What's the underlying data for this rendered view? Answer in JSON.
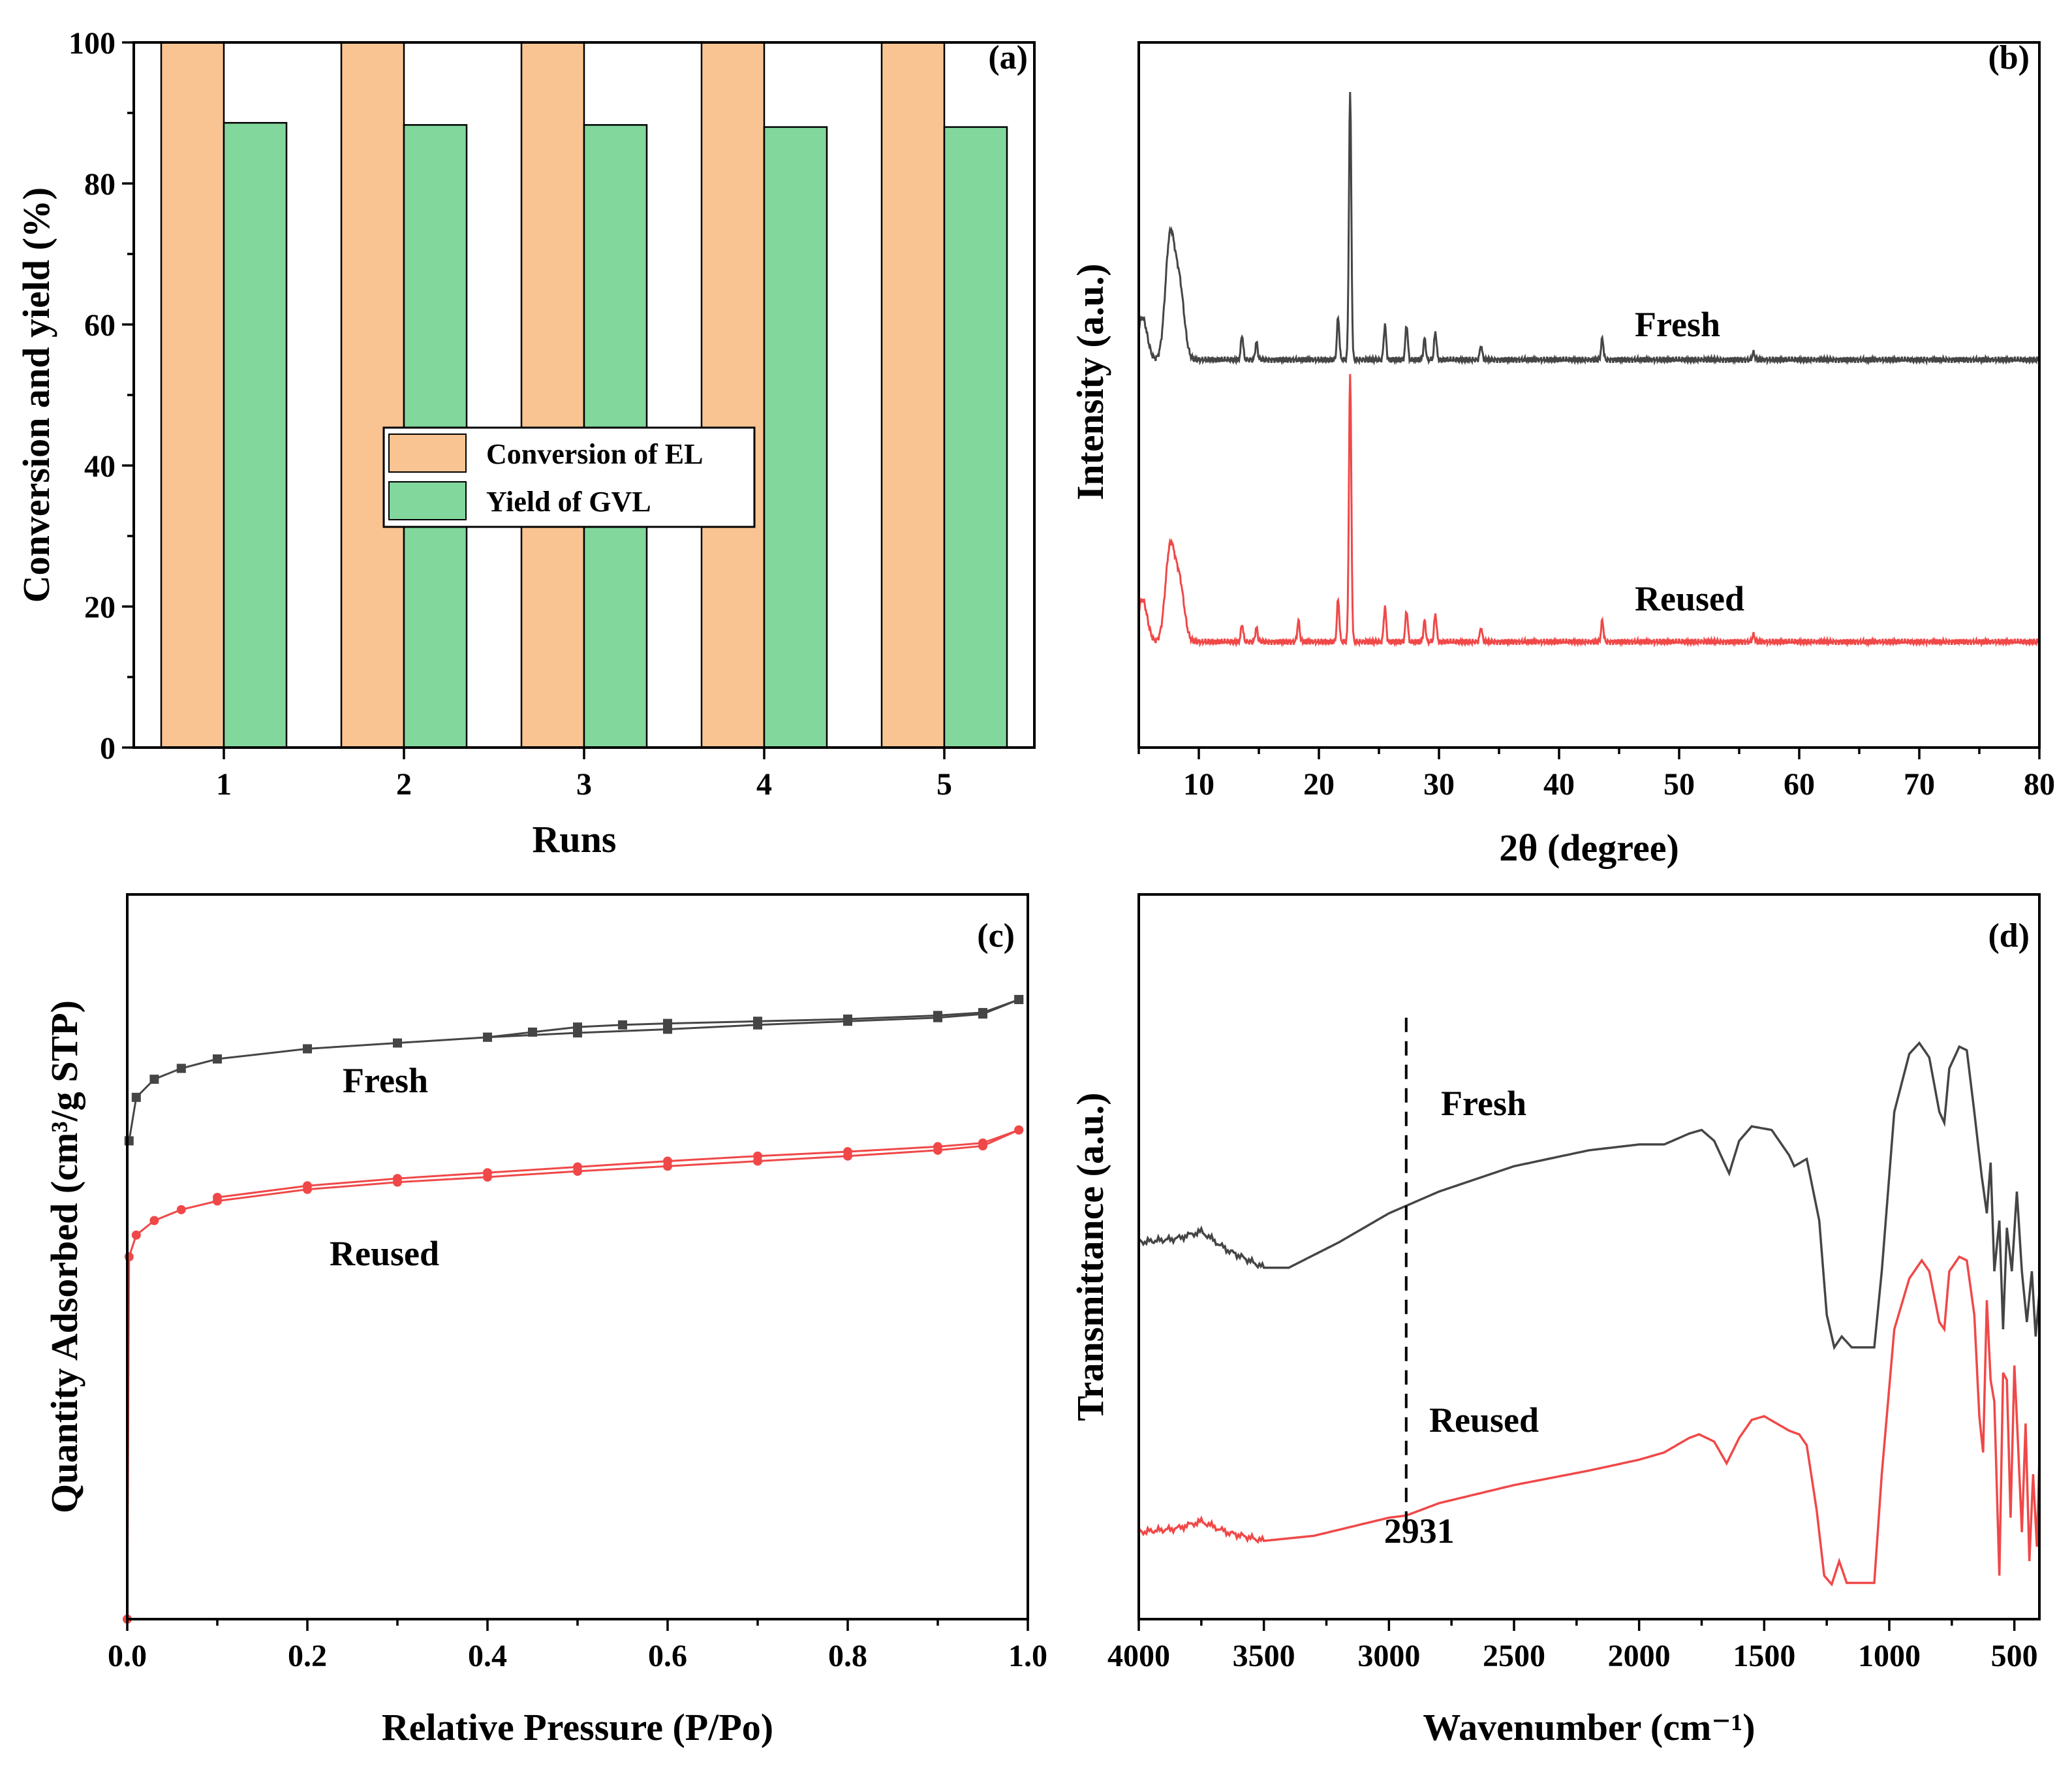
{
  "colors": {
    "conversion": "#F9C492",
    "yield": "#82D79D",
    "fresh": "#454545",
    "reused": "#F04848"
  },
  "chart_data": [
    {
      "panel": "(a)",
      "type": "bar",
      "categories": [
        "1",
        "2",
        "3",
        "4",
        "5"
      ],
      "series": [
        {
          "name": "Conversion of EL",
          "values": [
            100,
            100,
            100,
            100,
            100
          ]
        },
        {
          "name": "Yield of GVL",
          "values": [
            88.6,
            88.3,
            88.3,
            88.0,
            88.0
          ]
        }
      ],
      "xlabel": "Runs",
      "ylabel": "Conversion and yield (%)",
      "ylim": [
        0,
        100
      ],
      "yticks": [
        "0",
        "20",
        "40",
        "60",
        "80",
        "100"
      ],
      "legend": "center"
    },
    {
      "panel": "(b)",
      "type": "line",
      "xlabel": "2θ (degree)",
      "ylabel": "Intensity (a.u.)",
      "xlim": [
        5,
        80
      ],
      "xticks": [
        "10",
        "20",
        "30",
        "40",
        "50",
        "60",
        "70",
        "80"
      ],
      "series": [
        {
          "name": "Fresh",
          "label": "Fresh",
          "baseline": 55,
          "peaks": [
            [
              5.3,
              6
            ],
            [
              7.6,
              17
            ],
            [
              8.4,
              10
            ],
            [
              13.6,
              3.5
            ],
            [
              14.8,
              2.5
            ],
            [
              21.6,
              6
            ],
            [
              22.6,
              38
            ],
            [
              25.5,
              5
            ],
            [
              27.3,
              5
            ],
            [
              28.8,
              3
            ],
            [
              29.7,
              4
            ],
            [
              33.5,
              2
            ],
            [
              43.6,
              3
            ],
            [
              56.2,
              1
            ]
          ]
        },
        {
          "name": "Reused",
          "label": "Reused",
          "baseline": 15,
          "peaks": [
            [
              5.3,
              6
            ],
            [
              7.6,
              13
            ],
            [
              8.4,
              8
            ],
            [
              13.6,
              2.5
            ],
            [
              14.8,
              2
            ],
            [
              18.3,
              3
            ],
            [
              21.6,
              6
            ],
            [
              22.6,
              38
            ],
            [
              25.5,
              5
            ],
            [
              27.3,
              4.5
            ],
            [
              28.8,
              3
            ],
            [
              29.7,
              4
            ],
            [
              33.5,
              2
            ],
            [
              43.6,
              3
            ],
            [
              56.2,
              1
            ]
          ]
        }
      ]
    },
    {
      "panel": "(c)",
      "type": "line",
      "xlabel": "Relative Pressure (P/Po)",
      "ylabel": "Quantity Adsorbed (cm³/g STP)",
      "xlim": [
        0,
        1
      ],
      "xticks": [
        "0.0",
        "0.2",
        "0.4",
        "0.6",
        "0.8",
        "1.0"
      ],
      "series": [
        {
          "name": "Fresh",
          "label": "Fresh",
          "adsorption": [
            [
              0.002,
              66
            ],
            [
              0.01,
              72
            ],
            [
              0.03,
              74.5
            ],
            [
              0.06,
              76
            ],
            [
              0.1,
              77.3
            ],
            [
              0.2,
              78.7
            ],
            [
              0.3,
              79.5
            ],
            [
              0.4,
              80.3
            ],
            [
              0.5,
              80.9
            ],
            [
              0.6,
              81.4
            ],
            [
              0.7,
              82
            ],
            [
              0.8,
              82.5
            ],
            [
              0.9,
              83
            ],
            [
              0.95,
              83.5
            ],
            [
              0.99,
              85.5
            ]
          ],
          "desorption": [
            [
              0.99,
              85.5
            ],
            [
              0.95,
              83.7
            ],
            [
              0.9,
              83.3
            ],
            [
              0.8,
              82.8
            ],
            [
              0.7,
              82.5
            ],
            [
              0.6,
              82.2
            ],
            [
              0.55,
              82
            ],
            [
              0.5,
              81.7
            ],
            [
              0.45,
              81
            ],
            [
              0.4,
              80.3
            ]
          ]
        },
        {
          "name": "Reused",
          "label": "Reused",
          "adsorption": [
            [
              0.0,
              0
            ],
            [
              0.002,
              50
            ],
            [
              0.01,
              53
            ],
            [
              0.03,
              55
            ],
            [
              0.06,
              56.5
            ],
            [
              0.1,
              57.7
            ],
            [
              0.2,
              59.3
            ],
            [
              0.3,
              60.3
            ],
            [
              0.4,
              61
            ],
            [
              0.5,
              61.8
            ],
            [
              0.6,
              62.5
            ],
            [
              0.7,
              63.2
            ],
            [
              0.8,
              63.9
            ],
            [
              0.9,
              64.7
            ],
            [
              0.95,
              65.3
            ],
            [
              0.99,
              67.5
            ]
          ],
          "desorption": [
            [
              0.99,
              67.5
            ],
            [
              0.95,
              65.7
            ],
            [
              0.9,
              65.2
            ],
            [
              0.8,
              64.5
            ],
            [
              0.7,
              63.9
            ],
            [
              0.6,
              63.2
            ],
            [
              0.5,
              62.4
            ],
            [
              0.4,
              61.6
            ],
            [
              0.3,
              60.8
            ],
            [
              0.2,
              59.8
            ],
            [
              0.1,
              58.2
            ]
          ]
        }
      ]
    },
    {
      "panel": "(d)",
      "type": "line",
      "xlabel": "Wavenumber (cm⁻¹)",
      "ylabel": "Transmittance (a.u.)",
      "xlim": [
        4000,
        400
      ],
      "xticks": [
        "4000",
        "3500",
        "3000",
        "2500",
        "2000",
        "1500",
        "1000",
        "500"
      ],
      "annotation": {
        "label": "2931",
        "x": 2931
      },
      "series": [
        {
          "name": "Fresh",
          "label": "Fresh",
          "points": [
            [
              4000,
              52
            ],
            [
              3850,
              52.5
            ],
            [
              3750,
              53.5
            ],
            [
              3650,
              51
            ],
            [
              3500,
              48.5
            ],
            [
              3400,
              48.5
            ],
            [
              3200,
              52
            ],
            [
              3000,
              56
            ],
            [
              2800,
              59
            ],
            [
              2500,
              62.5
            ],
            [
              2200,
              64.7
            ],
            [
              2000,
              65.5
            ],
            [
              1900,
              65.5
            ],
            [
              1800,
              67
            ],
            [
              1750,
              67.5
            ],
            [
              1700,
              66
            ],
            [
              1640,
              61.5
            ],
            [
              1600,
              66
            ],
            [
              1550,
              68
            ],
            [
              1470,
              67.5
            ],
            [
              1400,
              64
            ],
            [
              1380,
              62.5
            ],
            [
              1330,
              63.5
            ],
            [
              1280,
              55
            ],
            [
              1250,
              42
            ],
            [
              1220,
              37.5
            ],
            [
              1190,
              39
            ],
            [
              1150,
              37.5
            ],
            [
              1060,
              37.5
            ],
            [
              1030,
              48
            ],
            [
              980,
              70
            ],
            [
              920,
              78
            ],
            [
              880,
              79.5
            ],
            [
              840,
              77.5
            ],
            [
              800,
              70
            ],
            [
              780,
              68.5
            ],
            [
              760,
              76
            ],
            [
              720,
              79
            ],
            [
              690,
              78.5
            ],
            [
              660,
              70
            ],
            [
              630,
              61
            ],
            [
              610,
              56
            ],
            [
              595,
              63
            ],
            [
              580,
              48
            ],
            [
              560,
              55
            ],
            [
              545,
              40
            ],
            [
              530,
              54
            ],
            [
              510,
              48
            ],
            [
              490,
              59
            ],
            [
              470,
              48
            ],
            [
              450,
              41
            ],
            [
              430,
              48
            ],
            [
              415,
              39
            ],
            [
              400,
              45
            ]
          ]
        },
        {
          "name": "Reused",
          "label": "Reused",
          "points": [
            [
              4000,
              12
            ],
            [
              3850,
              12.5
            ],
            [
              3750,
              13.5
            ],
            [
              3650,
              12
            ],
            [
              3500,
              10.8
            ],
            [
              3300,
              11.5
            ],
            [
              3000,
              14
            ],
            [
              2931,
              14.3
            ],
            [
              2800,
              16
            ],
            [
              2500,
              18.5
            ],
            [
              2200,
              20.5
            ],
            [
              2000,
              22
            ],
            [
              1900,
              23
            ],
            [
              1800,
              25
            ],
            [
              1760,
              25.5
            ],
            [
              1700,
              24.5
            ],
            [
              1650,
              21.5
            ],
            [
              1600,
              25
            ],
            [
              1550,
              27.5
            ],
            [
              1500,
              28
            ],
            [
              1450,
              27
            ],
            [
              1400,
              26
            ],
            [
              1360,
              25.5
            ],
            [
              1330,
              24
            ],
            [
              1290,
              15
            ],
            [
              1260,
              6
            ],
            [
              1230,
              4.8
            ],
            [
              1200,
              8
            ],
            [
              1170,
              5
            ],
            [
              1060,
              5
            ],
            [
              1030,
              20
            ],
            [
              980,
              40
            ],
            [
              920,
              47
            ],
            [
              870,
              49.5
            ],
            [
              840,
              48
            ],
            [
              800,
              41
            ],
            [
              780,
              40
            ],
            [
              760,
              48
            ],
            [
              720,
              50
            ],
            [
              690,
              49.5
            ],
            [
              660,
              42
            ],
            [
              640,
              28
            ],
            [
              625,
              23
            ],
            [
              610,
              44
            ],
            [
              595,
              33
            ],
            [
              580,
              30
            ],
            [
              560,
              6
            ],
            [
              545,
              34
            ],
            [
              530,
              33
            ],
            [
              515,
              14
            ],
            [
              500,
              35
            ],
            [
              485,
              24
            ],
            [
              470,
              12
            ],
            [
              455,
              27
            ],
            [
              440,
              8
            ],
            [
              425,
              20
            ],
            [
              410,
              10
            ],
            [
              400,
              22
            ]
          ]
        }
      ]
    }
  ]
}
